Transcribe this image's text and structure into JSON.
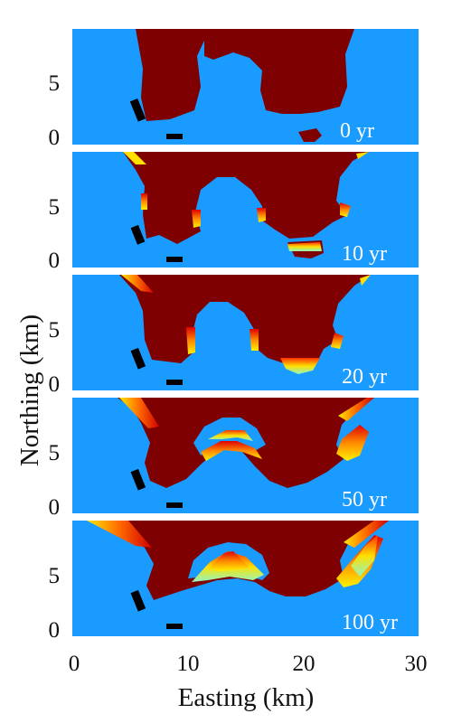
{
  "chart_data": {
    "type": "heatmap",
    "title": "",
    "xlabel": "Easting (km)",
    "ylabel": "Northing (km)",
    "xlim": [
      0,
      30
    ],
    "ylim": [
      0,
      10
    ],
    "x_ticks": [
      0,
      10,
      20,
      30
    ],
    "x_tick_labels": [
      "0",
      "10",
      "20",
      "30"
    ],
    "y_ticks": [
      0,
      5
    ],
    "y_tick_labels": [
      "0",
      "5"
    ],
    "colors": {
      "ocean": "#1a9bff",
      "land": "#7f0000",
      "transition_low": "#ffe400",
      "transition_high": "#e60000",
      "marker": "#000000"
    },
    "panels": [
      {
        "label": "0 yr"
      },
      {
        "label": "10 yr"
      },
      {
        "label": "20 yr"
      },
      {
        "label": "50 yr"
      },
      {
        "label": "100 yr"
      }
    ]
  }
}
